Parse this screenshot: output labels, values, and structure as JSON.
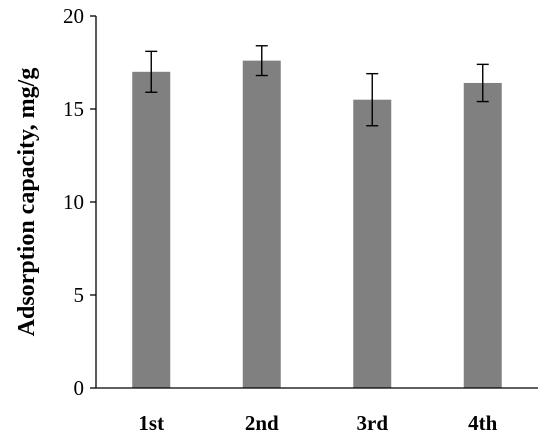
{
  "chart_data": {
    "type": "bar",
    "categories": [
      "1st",
      "2nd",
      "3rd",
      "4th"
    ],
    "values": [
      17.0,
      17.6,
      15.5,
      16.4
    ],
    "errors": [
      1.1,
      0.8,
      1.4,
      1.0
    ],
    "title": "",
    "xlabel": "",
    "ylabel": "Adsorption capacity, mg/g",
    "ylim": [
      0,
      20
    ],
    "yticks": [
      0,
      5,
      10,
      15,
      20
    ],
    "bar_color": "#808080",
    "grid": false,
    "legend": "none"
  }
}
